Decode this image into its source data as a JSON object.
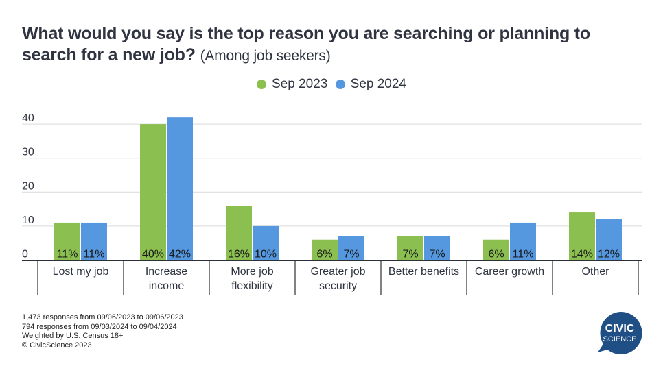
{
  "title": {
    "main": "What would you say is the top reason you are searching or planning to search for a new job?",
    "subtitle": "(Among job seekers)"
  },
  "colors": {
    "sep2023": "#8bbf4f",
    "sep2024": "#5598e0",
    "axis": "#2b2f36",
    "grid": "#d9d9d9",
    "logo": "#1f4f84"
  },
  "chart_data": {
    "type": "bar",
    "title": "What would you say is the top reason you are searching or planning to search for a new job? (Among job seekers)",
    "xlabel": "",
    "ylabel": "",
    "ylim": [
      0,
      45
    ],
    "yticks": [
      0,
      10,
      20,
      30,
      40
    ],
    "grid": true,
    "legend_position": "top-center",
    "categories": [
      "Lost my job",
      "Increase income",
      "More job flexibility",
      "Greater job security",
      "Better benefits",
      "Career growth",
      "Other"
    ],
    "category_lines": [
      [
        "Lost my job"
      ],
      [
        "Increase",
        "income"
      ],
      [
        "More job",
        "flexibility"
      ],
      [
        "Greater job",
        "security"
      ],
      [
        "Better benefits"
      ],
      [
        "Career growth"
      ],
      [
        "Other"
      ]
    ],
    "series": [
      {
        "name": "Sep 2023",
        "values": [
          11,
          40,
          16,
          6,
          7,
          6,
          14
        ],
        "labels": [
          "11%",
          "40%",
          "16%",
          "6%",
          "7%",
          "6%",
          "14%"
        ]
      },
      {
        "name": "Sep 2024",
        "values": [
          11,
          42,
          10,
          7,
          7,
          11,
          12
        ],
        "labels": [
          "11%",
          "42%",
          "10%",
          "7%",
          "7%",
          "11%",
          "12%"
        ]
      }
    ]
  },
  "footer": {
    "lines": [
      "1,473 responses from 09/06/2023 to 09/06/2023",
      "794 responses from 09/03/2024 to 09/04/2024",
      "Weighted by U.S. Census 18+",
      "© CivicScience 2023"
    ]
  },
  "logo": {
    "line1": "CIVIC",
    "line2": "SCIENCE"
  }
}
